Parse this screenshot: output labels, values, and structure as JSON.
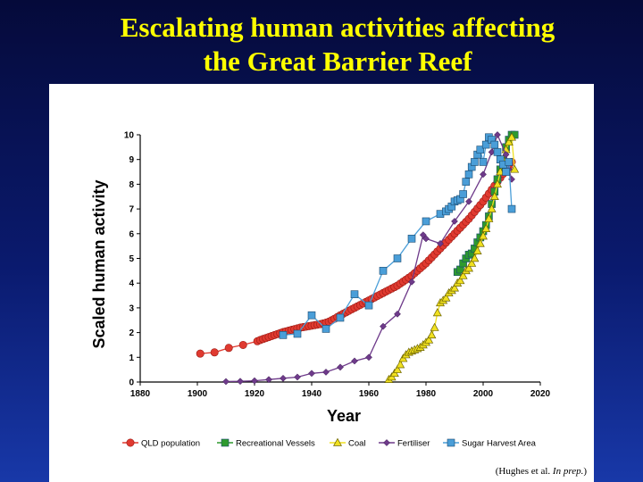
{
  "slide": {
    "title_line1": "Escalating human activities affecting",
    "title_line2": "the Great Barrier Reef",
    "source_prefix": "(Hughes et al. ",
    "source_italic": "In prep.",
    "source_suffix": ")"
  },
  "chart_data": {
    "type": "line",
    "title": "",
    "xlabel": "Year",
    "ylabel": "Scaled human activity",
    "xlim": [
      1880,
      2020
    ],
    "ylim": [
      0,
      10
    ],
    "x_ticks": [
      1880,
      1900,
      1920,
      1940,
      1960,
      1980,
      2000,
      2020
    ],
    "y_ticks": [
      0,
      1,
      2,
      3,
      4,
      5,
      6,
      7,
      8,
      9,
      10
    ],
    "grid": false,
    "legend_position": "bottom",
    "series": [
      {
        "name": "QLD population",
        "color": "#e03a30",
        "marker": "circle",
        "points": [
          [
            1901,
            1.15
          ],
          [
            1906,
            1.2
          ],
          [
            1911,
            1.38
          ],
          [
            1916,
            1.5
          ],
          [
            1921,
            1.65
          ],
          [
            1922,
            1.7
          ],
          [
            1923,
            1.74
          ],
          [
            1924,
            1.78
          ],
          [
            1925,
            1.82
          ],
          [
            1926,
            1.86
          ],
          [
            1927,
            1.9
          ],
          [
            1928,
            1.94
          ],
          [
            1929,
            1.98
          ],
          [
            1930,
            2.02
          ],
          [
            1931,
            2.05
          ],
          [
            1932,
            2.08
          ],
          [
            1933,
            2.11
          ],
          [
            1934,
            2.14
          ],
          [
            1935,
            2.17
          ],
          [
            1936,
            2.2
          ],
          [
            1937,
            2.22
          ],
          [
            1938,
            2.24
          ],
          [
            1939,
            2.26
          ],
          [
            1940,
            2.28
          ],
          [
            1941,
            2.3
          ],
          [
            1942,
            2.32
          ],
          [
            1943,
            2.34
          ],
          [
            1944,
            2.37
          ],
          [
            1945,
            2.4
          ],
          [
            1946,
            2.44
          ],
          [
            1947,
            2.5
          ],
          [
            1948,
            2.56
          ],
          [
            1949,
            2.63
          ],
          [
            1950,
            2.7
          ],
          [
            1951,
            2.76
          ],
          [
            1952,
            2.82
          ],
          [
            1953,
            2.88
          ],
          [
            1954,
            2.94
          ],
          [
            1955,
            3.0
          ],
          [
            1956,
            3.06
          ],
          [
            1957,
            3.12
          ],
          [
            1958,
            3.18
          ],
          [
            1959,
            3.24
          ],
          [
            1960,
            3.3
          ],
          [
            1961,
            3.36
          ],
          [
            1962,
            3.42
          ],
          [
            1963,
            3.48
          ],
          [
            1964,
            3.54
          ],
          [
            1965,
            3.6
          ],
          [
            1966,
            3.66
          ],
          [
            1967,
            3.72
          ],
          [
            1968,
            3.78
          ],
          [
            1969,
            3.84
          ],
          [
            1970,
            3.9
          ],
          [
            1971,
            3.98
          ],
          [
            1972,
            4.06
          ],
          [
            1973,
            4.14
          ],
          [
            1974,
            4.22
          ],
          [
            1975,
            4.3
          ],
          [
            1976,
            4.4
          ],
          [
            1977,
            4.5
          ],
          [
            1978,
            4.6
          ],
          [
            1979,
            4.7
          ],
          [
            1980,
            4.8
          ],
          [
            1981,
            4.92
          ],
          [
            1982,
            5.04
          ],
          [
            1983,
            5.16
          ],
          [
            1984,
            5.28
          ],
          [
            1985,
            5.4
          ],
          [
            1986,
            5.52
          ],
          [
            1987,
            5.64
          ],
          [
            1988,
            5.76
          ],
          [
            1989,
            5.88
          ],
          [
            1990,
            6.0
          ],
          [
            1991,
            6.12
          ],
          [
            1992,
            6.24
          ],
          [
            1993,
            6.36
          ],
          [
            1994,
            6.48
          ],
          [
            1995,
            6.6
          ],
          [
            1996,
            6.74
          ],
          [
            1997,
            6.88
          ],
          [
            1998,
            7.02
          ],
          [
            1999,
            7.16
          ],
          [
            2000,
            7.3
          ],
          [
            2001,
            7.46
          ],
          [
            2002,
            7.62
          ],
          [
            2003,
            7.78
          ],
          [
            2004,
            7.94
          ],
          [
            2005,
            8.1
          ],
          [
            2006,
            8.26
          ],
          [
            2007,
            8.42
          ],
          [
            2008,
            8.58
          ],
          [
            2009,
            8.74
          ],
          [
            2010,
            8.9
          ]
        ]
      },
      {
        "name": "Recreational Vessels",
        "color": "#2e9a2e",
        "marker": "square",
        "points": [
          [
            1991,
            4.45
          ],
          [
            1992,
            4.55
          ],
          [
            1993,
            4.8
          ],
          [
            1994,
            5.0
          ],
          [
            1995,
            5.15
          ],
          [
            1996,
            5.2
          ],
          [
            1997,
            5.4
          ],
          [
            1998,
            5.65
          ],
          [
            1999,
            5.85
          ],
          [
            2000,
            6.1
          ],
          [
            2001,
            6.35
          ],
          [
            2002,
            6.7
          ],
          [
            2003,
            7.2
          ],
          [
            2004,
            7.7
          ],
          [
            2005,
            8.2
          ],
          [
            2006,
            8.6
          ],
          [
            2007,
            9.0
          ],
          [
            2008,
            9.5
          ],
          [
            2009,
            9.8
          ],
          [
            2010,
            10.0
          ],
          [
            2011,
            10.0
          ]
        ]
      },
      {
        "name": "Coal",
        "color": "#f0e020",
        "marker": "triangle",
        "points": [
          [
            1967,
            0.1
          ],
          [
            1968,
            0.2
          ],
          [
            1969,
            0.35
          ],
          [
            1970,
            0.5
          ],
          [
            1971,
            0.7
          ],
          [
            1972,
            0.95
          ],
          [
            1973,
            1.1
          ],
          [
            1974,
            1.2
          ],
          [
            1975,
            1.25
          ],
          [
            1976,
            1.3
          ],
          [
            1977,
            1.35
          ],
          [
            1978,
            1.4
          ],
          [
            1979,
            1.5
          ],
          [
            1980,
            1.6
          ],
          [
            1981,
            1.7
          ],
          [
            1982,
            1.9
          ],
          [
            1983,
            2.2
          ],
          [
            1984,
            2.8
          ],
          [
            1985,
            3.2
          ],
          [
            1986,
            3.3
          ],
          [
            1987,
            3.4
          ],
          [
            1988,
            3.6
          ],
          [
            1989,
            3.7
          ],
          [
            1990,
            3.8
          ],
          [
            1991,
            4.0
          ],
          [
            1992,
            4.1
          ],
          [
            1993,
            4.3
          ],
          [
            1994,
            4.5
          ],
          [
            1995,
            4.6
          ],
          [
            1996,
            4.8
          ],
          [
            1997,
            5.0
          ],
          [
            1998,
            5.3
          ],
          [
            1999,
            5.6
          ],
          [
            2000,
            5.9
          ],
          [
            2001,
            6.2
          ],
          [
            2002,
            6.6
          ],
          [
            2003,
            7.0
          ],
          [
            2004,
            7.5
          ],
          [
            2005,
            8.0
          ],
          [
            2006,
            8.5
          ],
          [
            2007,
            9.0
          ],
          [
            2008,
            9.4
          ],
          [
            2009,
            9.7
          ],
          [
            2010,
            9.9
          ],
          [
            2011,
            8.6
          ]
        ]
      },
      {
        "name": "Fertiliser",
        "color": "#6e3a8a",
        "marker": "diamond",
        "points": [
          [
            1910,
            0.02
          ],
          [
            1915,
            0.03
          ],
          [
            1920,
            0.05
          ],
          [
            1925,
            0.1
          ],
          [
            1930,
            0.15
          ],
          [
            1935,
            0.2
          ],
          [
            1940,
            0.35
          ],
          [
            1945,
            0.4
          ],
          [
            1950,
            0.6
          ],
          [
            1955,
            0.85
          ],
          [
            1960,
            1.0
          ],
          [
            1965,
            2.25
          ],
          [
            1970,
            2.75
          ],
          [
            1975,
            4.05
          ],
          [
            1979,
            5.95
          ],
          [
            1980,
            5.8
          ],
          [
            1985,
            5.6
          ],
          [
            1990,
            6.5
          ],
          [
            1995,
            7.3
          ],
          [
            2000,
            8.4
          ],
          [
            2003,
            9.3
          ],
          [
            2005,
            10.0
          ],
          [
            2008,
            9.2
          ],
          [
            2009,
            8.6
          ],
          [
            2010,
            8.2
          ]
        ]
      },
      {
        "name": "Sugar Harvest Area",
        "color": "#4a9ed8",
        "marker": "square",
        "points": [
          [
            1930,
            1.9
          ],
          [
            1935,
            1.95
          ],
          [
            1940,
            2.7
          ],
          [
            1945,
            2.15
          ],
          [
            1950,
            2.6
          ],
          [
            1955,
            3.55
          ],
          [
            1960,
            3.1
          ],
          [
            1965,
            4.5
          ],
          [
            1970,
            5.0
          ],
          [
            1975,
            5.8
          ],
          [
            1980,
            6.5
          ],
          [
            1985,
            6.8
          ],
          [
            1987,
            6.9
          ],
          [
            1988,
            7.0
          ],
          [
            1989,
            7.1
          ],
          [
            1990,
            7.3
          ],
          [
            1991,
            7.35
          ],
          [
            1992,
            7.4
          ],
          [
            1993,
            7.6
          ],
          [
            1994,
            8.1
          ],
          [
            1995,
            8.4
          ],
          [
            1996,
            8.7
          ],
          [
            1997,
            8.9
          ],
          [
            1998,
            9.2
          ],
          [
            1999,
            9.4
          ],
          [
            2000,
            8.9
          ],
          [
            2001,
            9.6
          ],
          [
            2002,
            9.9
          ],
          [
            2003,
            9.8
          ],
          [
            2004,
            9.6
          ],
          [
            2005,
            9.3
          ],
          [
            2006,
            9.0
          ],
          [
            2007,
            8.8
          ],
          [
            2008,
            8.5
          ],
          [
            2009,
            8.9
          ],
          [
            2010,
            7.0
          ]
        ]
      }
    ]
  }
}
